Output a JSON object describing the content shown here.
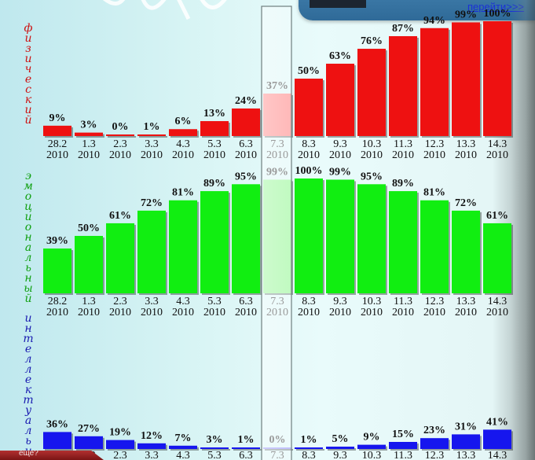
{
  "header": {
    "link_label": "перейти>>>"
  },
  "footer": {
    "tab_label": "еще?"
  },
  "chart_data": {
    "type": "bar",
    "highlight_category": "7.3 2010",
    "categories": [
      [
        "28.2",
        "2010"
      ],
      [
        "1.3",
        "2010"
      ],
      [
        "2.3",
        "2010"
      ],
      [
        "3.3",
        "2010"
      ],
      [
        "4.3",
        "2010"
      ],
      [
        "5.3",
        "2010"
      ],
      [
        "6.3",
        "2010"
      ],
      [
        "7.3",
        "2010"
      ],
      [
        "8.3",
        "2010"
      ],
      [
        "9.3",
        "2010"
      ],
      [
        "10.3",
        "2010"
      ],
      [
        "11.3",
        "2010"
      ],
      [
        "12.3",
        "2010"
      ],
      [
        "13.3",
        "2010"
      ],
      [
        "14.3",
        "2010"
      ]
    ],
    "ylim": [
      0,
      100
    ],
    "series": [
      {
        "name": "физический",
        "color": "#ee1111",
        "highlight_color": "#ff9a9a",
        "values": [
          9,
          3,
          0,
          1,
          6,
          13,
          24,
          37,
          50,
          63,
          76,
          87,
          94,
          99,
          100
        ],
        "labels": [
          "9%",
          "3%",
          "0%",
          "1%",
          "6%",
          "13%",
          "24%",
          "37%",
          "50%",
          "63%",
          "76%",
          "87%",
          "94%",
          "99%",
          "100%"
        ]
      },
      {
        "name": "эмоциональный",
        "color": "#11ee11",
        "highlight_color": "#a6f7a6",
        "values": [
          39,
          50,
          61,
          72,
          81,
          89,
          95,
          99,
          100,
          99,
          95,
          89,
          81,
          72,
          61
        ],
        "labels": [
          "39%",
          "50%",
          "61%",
          "72%",
          "81%",
          "89%",
          "95%",
          "99%",
          "100%",
          "99%",
          "95%",
          "89%",
          "81%",
          "72%",
          "61%"
        ]
      },
      {
        "name": "интеллектуальный",
        "color": "#1616ee",
        "highlight_color": "#a3a3f7",
        "values": [
          36,
          27,
          19,
          12,
          7,
          3,
          1,
          0,
          1,
          5,
          9,
          15,
          23,
          31,
          41
        ],
        "labels": [
          "36%",
          "27%",
          "19%",
          "12%",
          "7%",
          "3%",
          "1%",
          "0%",
          "1%",
          "5%",
          "9%",
          "15%",
          "23%",
          "31%",
          "41%"
        ]
      }
    ]
  }
}
